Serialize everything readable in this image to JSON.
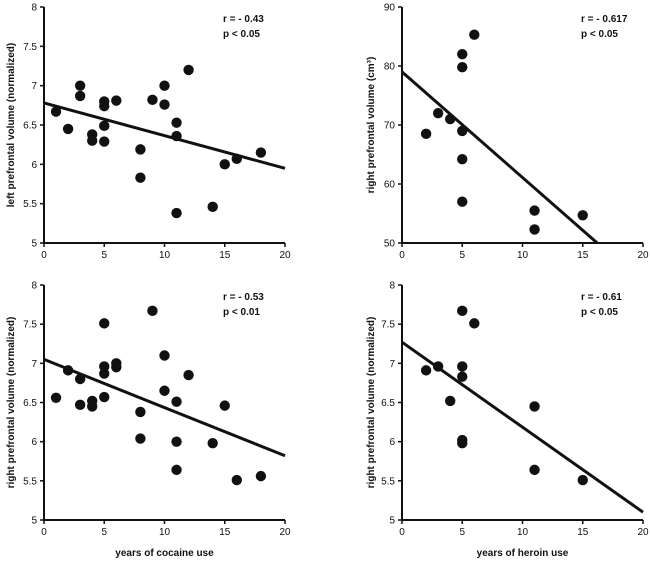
{
  "chart_data": [
    {
      "type": "scatter",
      "id": "cocaine-left",
      "xlabel": "",
      "ylabel": "left prefrontal volume (normalized)",
      "xlim": [
        0,
        20
      ],
      "ylim": [
        5,
        8
      ],
      "xticks": [
        0,
        5,
        10,
        15,
        20
      ],
      "yticks": [
        5,
        5.5,
        6,
        6.5,
        7,
        7.5,
        8
      ],
      "annotations": [
        "r = - 0.43",
        "p < 0.05"
      ],
      "fit_line": {
        "x": [
          0,
          20
        ],
        "y": [
          6.78,
          5.95
        ]
      },
      "points": [
        [
          1,
          6.67
        ],
        [
          2,
          6.45
        ],
        [
          3,
          7.0
        ],
        [
          3,
          6.87
        ],
        [
          4,
          6.38
        ],
        [
          4,
          6.3
        ],
        [
          5,
          6.8
        ],
        [
          5,
          6.74
        ],
        [
          5,
          6.49
        ],
        [
          5,
          6.29
        ],
        [
          6,
          6.81
        ],
        [
          8,
          6.19
        ],
        [
          8,
          5.83
        ],
        [
          9,
          6.82
        ],
        [
          10,
          7.0
        ],
        [
          10,
          6.76
        ],
        [
          11,
          6.53
        ],
        [
          11,
          6.36
        ],
        [
          11,
          5.38
        ],
        [
          12,
          7.2
        ],
        [
          14,
          5.46
        ],
        [
          15,
          6.0
        ],
        [
          16,
          6.07
        ],
        [
          18,
          6.15
        ]
      ]
    },
    {
      "type": "scatter",
      "id": "heroin-right-cm3",
      "xlabel": "",
      "ylabel": "right prefrontal volume (cm³)",
      "xlim": [
        0,
        20
      ],
      "ylim": [
        50,
        90
      ],
      "xticks": [
        0,
        5,
        10,
        15,
        20
      ],
      "yticks": [
        50,
        60,
        70,
        80,
        90
      ],
      "annotations": [
        "r = - 0.617",
        "p < 0.05"
      ],
      "fit_line": {
        "x": [
          0,
          16.2
        ],
        "y": [
          79,
          50
        ]
      },
      "points": [
        [
          2,
          68.5
        ],
        [
          3,
          72
        ],
        [
          4,
          71
        ],
        [
          5,
          82
        ],
        [
          5,
          79.8
        ],
        [
          5,
          69
        ],
        [
          5,
          64.2
        ],
        [
          5,
          57
        ],
        [
          6,
          85.3
        ],
        [
          11,
          55.5
        ],
        [
          11,
          52.3
        ],
        [
          15,
          54.7
        ]
      ]
    },
    {
      "type": "scatter",
      "id": "cocaine-right",
      "xlabel": "years of cocaine use",
      "ylabel": "right prefrontal volume (normalized)",
      "xlim": [
        0,
        20
      ],
      "ylim": [
        5,
        8
      ],
      "xticks": [
        0,
        5,
        10,
        15,
        20
      ],
      "yticks": [
        5,
        5.5,
        6,
        6.5,
        7,
        7.5,
        8
      ],
      "annotations": [
        "r = - 0.53",
        "p < 0.01"
      ],
      "fit_line": {
        "x": [
          0,
          20
        ],
        "y": [
          7.05,
          5.82
        ]
      },
      "points": [
        [
          1,
          6.56
        ],
        [
          2,
          6.91
        ],
        [
          3,
          6.8
        ],
        [
          3,
          6.47
        ],
        [
          4,
          6.52
        ],
        [
          4,
          6.45
        ],
        [
          5,
          7.51
        ],
        [
          5,
          6.96
        ],
        [
          5,
          6.87
        ],
        [
          5,
          6.57
        ],
        [
          6,
          7.0
        ],
        [
          6,
          6.95
        ],
        [
          8,
          6.38
        ],
        [
          8,
          6.04
        ],
        [
          9,
          7.67
        ],
        [
          10,
          7.1
        ],
        [
          10,
          6.65
        ],
        [
          11,
          6.51
        ],
        [
          11,
          6.0
        ],
        [
          11,
          5.64
        ],
        [
          12,
          6.85
        ],
        [
          14,
          5.98
        ],
        [
          15,
          6.46
        ],
        [
          16,
          5.51
        ],
        [
          18,
          5.56
        ]
      ]
    },
    {
      "type": "scatter",
      "id": "heroin-right",
      "xlabel": "years of heroin use",
      "ylabel": "right prefrontal volume (normalized)",
      "xlim": [
        0,
        20
      ],
      "ylim": [
        5,
        8
      ],
      "xticks": [
        0,
        5,
        10,
        15,
        20
      ],
      "yticks": [
        5,
        5.5,
        6,
        6.5,
        7,
        7.5,
        8
      ],
      "annotations": [
        "r = - 0.61",
        "p < 0.05"
      ],
      "fit_line": {
        "x": [
          0,
          20
        ],
        "y": [
          7.27,
          5.1
        ]
      },
      "points": [
        [
          2,
          6.91
        ],
        [
          3,
          6.96
        ],
        [
          4,
          6.52
        ],
        [
          5,
          7.67
        ],
        [
          5,
          6.96
        ],
        [
          5,
          6.83
        ],
        [
          5,
          6.02
        ],
        [
          5,
          5.98
        ],
        [
          6,
          7.51
        ],
        [
          11,
          6.45
        ],
        [
          11,
          5.64
        ],
        [
          15,
          5.51
        ]
      ]
    }
  ]
}
